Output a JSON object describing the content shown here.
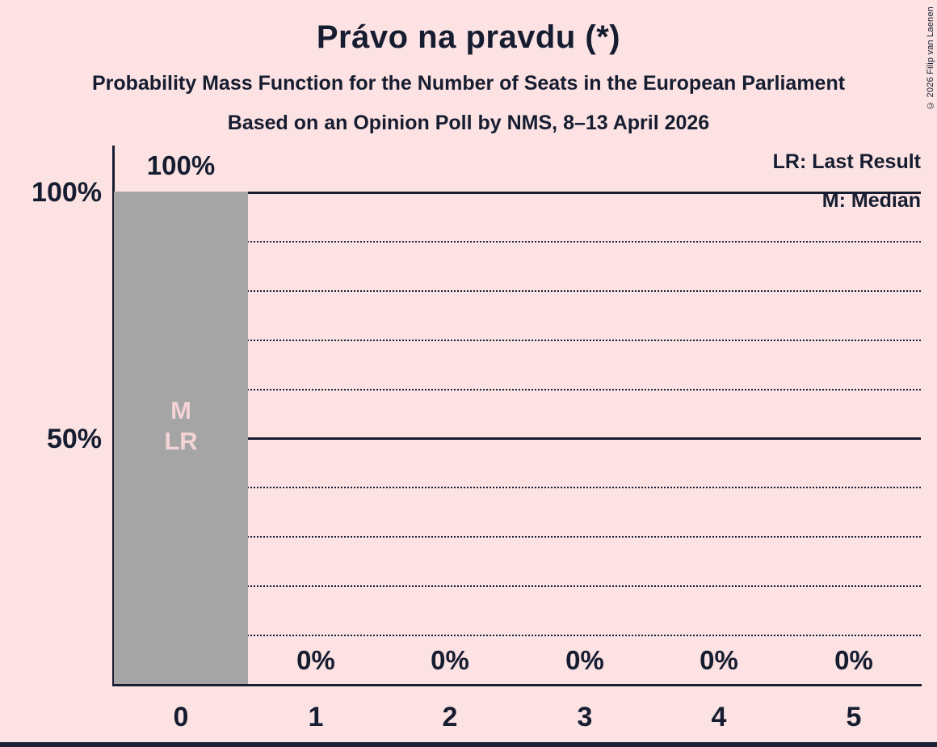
{
  "header": {
    "title": "Právo na pravdu (*)",
    "subtitle": "Probability Mass Function for the Number of Seats in the European Parliament",
    "poll_info": "Based on an Opinion Poll by NMS, 8–13 April 2026"
  },
  "legend": {
    "last_result": "LR: Last Result",
    "median": "M: Median"
  },
  "copyright": "© 2026 Filip van Laenen",
  "colors": {
    "background": "#fce2e2",
    "text": "#161d31",
    "bar": "#a5a5a5",
    "bar_annotation": "#f3d3d6"
  },
  "chart_data": {
    "type": "bar",
    "title": "Právo na pravdu (*)",
    "categories": [
      "0",
      "1",
      "2",
      "3",
      "4",
      "5"
    ],
    "values": [
      100,
      0,
      0,
      0,
      0,
      0
    ],
    "value_labels": [
      "100%",
      "0%",
      "0%",
      "0%",
      "0%",
      "0%"
    ],
    "xlabel": "",
    "ylabel": "",
    "ylim": [
      0,
      100
    ],
    "ytick_labels": [
      "100%",
      "50%"
    ],
    "solid_gridlines_pct": [
      100,
      50
    ],
    "dotted_gridlines_pct": [
      90,
      80,
      70,
      60,
      40,
      30,
      20,
      10
    ],
    "grid": "horizontal",
    "legend_position": "top-right",
    "annotations": {
      "bar_category": "0",
      "labels": [
        "M",
        "LR"
      ],
      "median_seats": "0",
      "last_result_seats": "0"
    }
  }
}
